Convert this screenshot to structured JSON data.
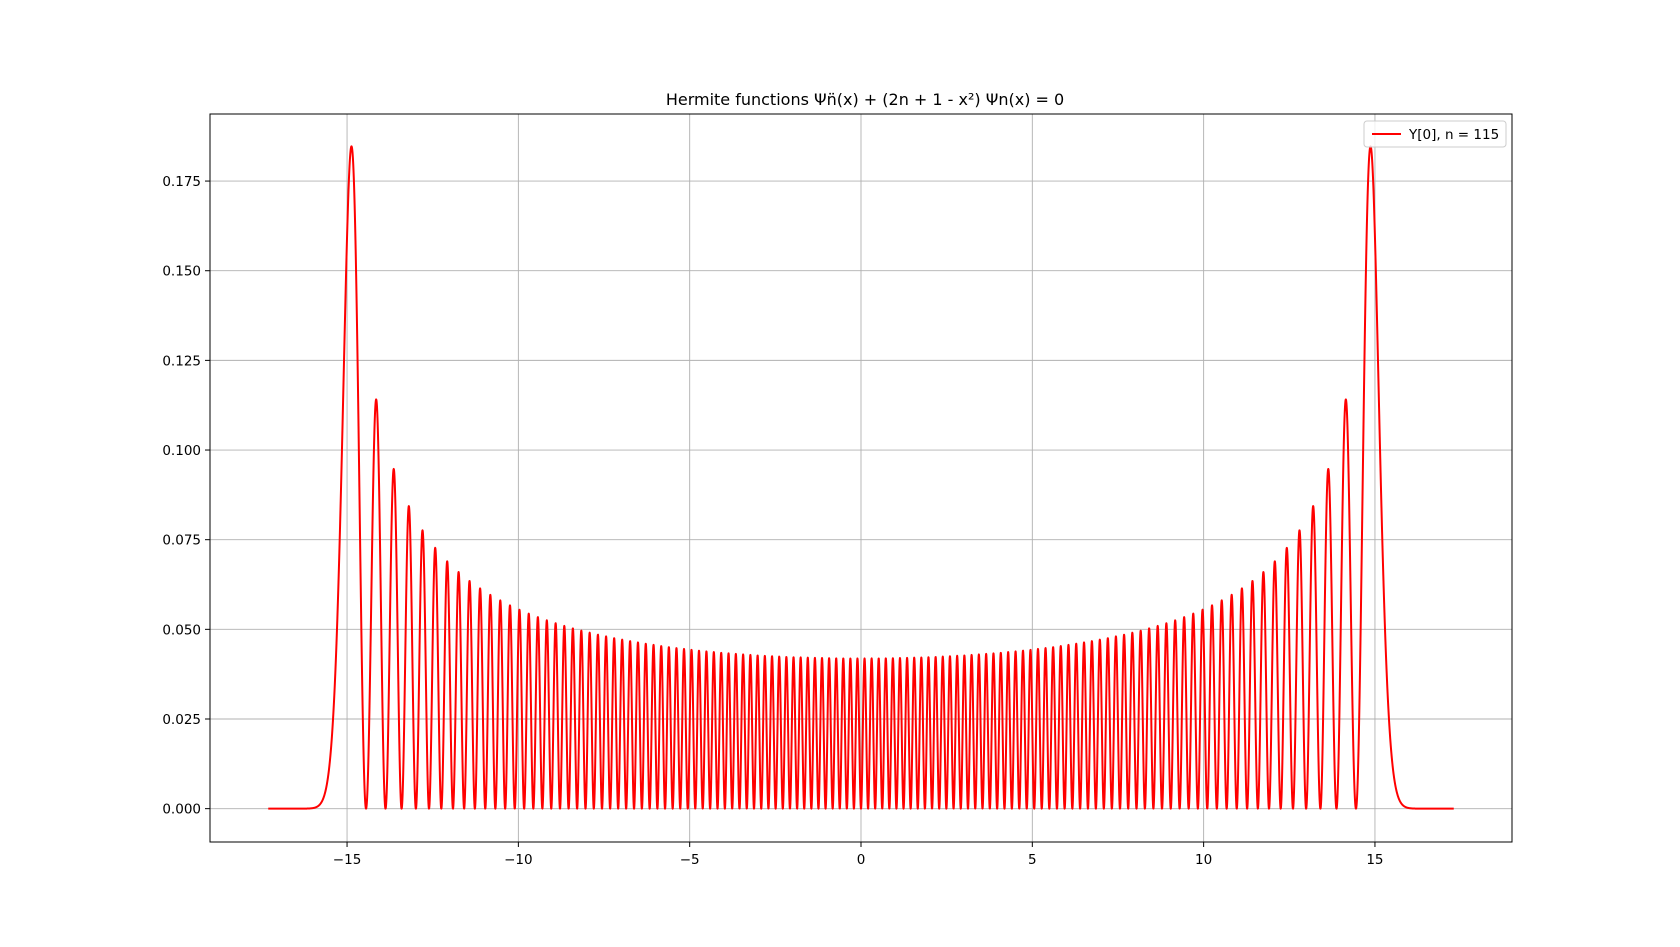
{
  "chart_data": {
    "type": "line",
    "title": "Hermite functions Ψn̈(x) + (2n + 1 - x²) Ψn(x) = 0",
    "xlabel": "",
    "ylabel": "",
    "xlim": [
      -19,
      19
    ],
    "ylim": [
      -0.0093,
      0.1937
    ],
    "xticks": [
      -15,
      -10,
      -5,
      0,
      5,
      10,
      15
    ],
    "xtick_labels": [
      "−15",
      "−10",
      "−5",
      "0",
      "5",
      "10",
      "15"
    ],
    "yticks": [
      0.0,
      0.025,
      0.05,
      0.075,
      0.1,
      0.125,
      0.15,
      0.175
    ],
    "ytick_labels": [
      "0.000",
      "0.025",
      "0.050",
      "0.075",
      "0.100",
      "0.125",
      "0.150",
      "0.175"
    ],
    "grid": true,
    "legend_position": "top-right",
    "series": [
      {
        "name": "Y[0], n = 115",
        "color": "#ff0000",
        "function": "squared normalized Hermite function |psi_n(x)|^2",
        "n": 115,
        "x_range": [
          -17.3,
          17.3
        ],
        "peak_points": [
          {
            "x": -14.85,
            "y": 0.185
          },
          {
            "x": -14.12,
            "y": 0.114
          },
          {
            "x": -13.62,
            "y": 0.095
          },
          {
            "x": -13.2,
            "y": 0.0845
          },
          {
            "x": -12.82,
            "y": 0.0778
          },
          {
            "x": -10.0,
            "y": 0.0555
          },
          {
            "x": -5.0,
            "y": 0.0455
          },
          {
            "x": 0.0,
            "y": 0.042
          },
          {
            "x": 5.0,
            "y": 0.0455
          },
          {
            "x": 10.0,
            "y": 0.0555
          },
          {
            "x": 12.82,
            "y": 0.0778
          },
          {
            "x": 13.2,
            "y": 0.0845
          },
          {
            "x": 13.62,
            "y": 0.095
          },
          {
            "x": 14.12,
            "y": 0.114
          },
          {
            "x": 14.85,
            "y": 0.185
          }
        ]
      }
    ]
  }
}
